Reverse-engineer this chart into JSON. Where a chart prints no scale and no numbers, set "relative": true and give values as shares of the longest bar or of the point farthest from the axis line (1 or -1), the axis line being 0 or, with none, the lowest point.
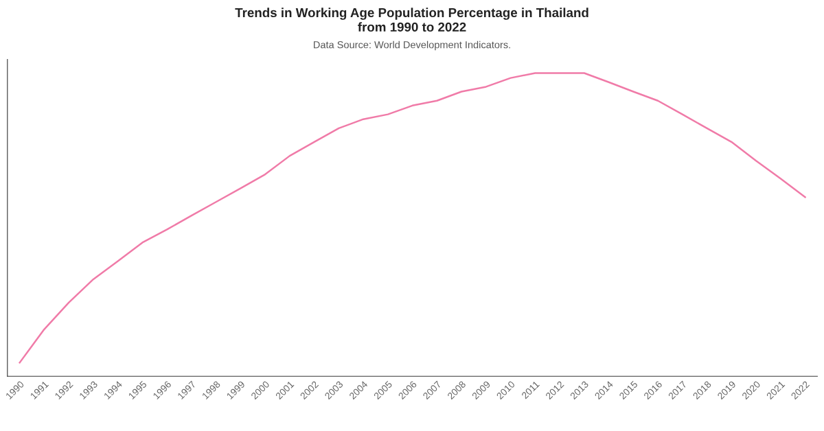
{
  "chart_data": {
    "type": "line",
    "title": "Trends in Working Age Population Percentage in Thailand\nfrom 1990 to 2022",
    "subtitle": "Data Source: World Development Indicators.",
    "categories": [
      "1990",
      "1991",
      "1992",
      "1993",
      "1994",
      "1995",
      "1996",
      "1997",
      "1998",
      "1999",
      "2000",
      "2001",
      "2002",
      "2003",
      "2004",
      "2005",
      "2006",
      "2007",
      "2008",
      "2009",
      "2010",
      "2011",
      "2012",
      "2013",
      "2014",
      "2015",
      "2016",
      "2017",
      "2018",
      "2019",
      "2020",
      "2021",
      "2022"
    ],
    "series": [
      {
        "color": "#f07ba8",
        "values": [
          0.045,
          0.155,
          0.243,
          0.32,
          0.38,
          0.441,
          0.484,
          0.53,
          0.575,
          0.62,
          0.666,
          0.727,
          0.773,
          0.818,
          0.848,
          0.864,
          0.893,
          0.909,
          0.939,
          0.955,
          0.984,
          1,
          1,
          1,
          0.97,
          0.939,
          0.909,
          0.864,
          0.818,
          0.773,
          0.711,
          0.652,
          0.591
        ]
      }
    ],
    "relative": true,
    "grid": false,
    "legend": false,
    "marker": "none",
    "line_style": "solid"
  }
}
